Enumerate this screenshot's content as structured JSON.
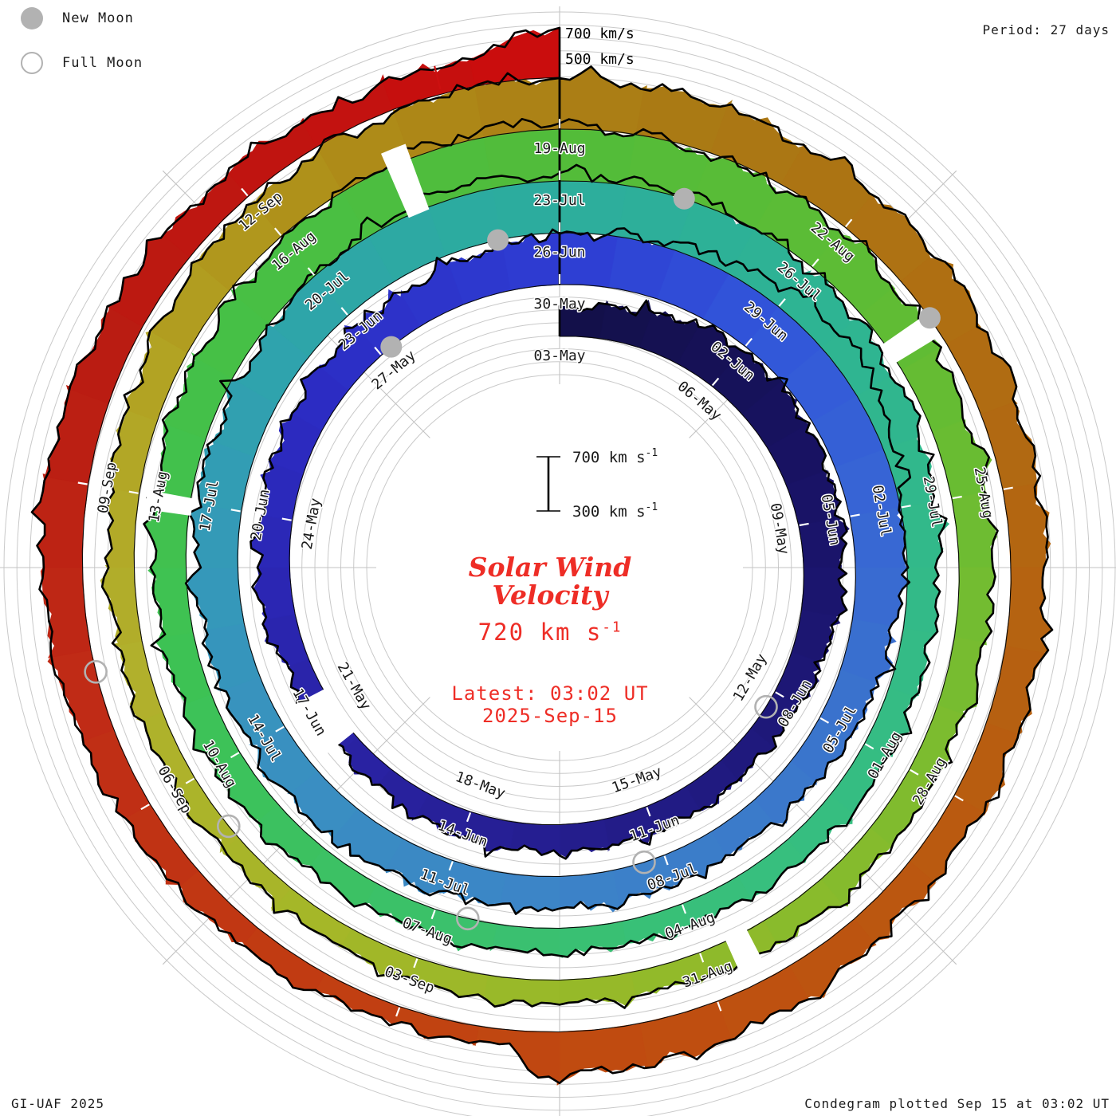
{
  "header": {
    "period_label": "Period: 27 days"
  },
  "legend": {
    "new_moon_label": "New Moon",
    "full_moon_label": "Full Moon"
  },
  "footer": {
    "left": "GI-UAF 2025",
    "right": "Condegram plotted Sep 15 at 03:02 UT"
  },
  "center": {
    "title_line1": "Solar Wind",
    "title_line2": "Velocity",
    "current_value": "720 km s",
    "current_sup": "-1",
    "latest_line1": "Latest: 03:02 UT",
    "latest_line2": "2025-Sep-15"
  },
  "chart_data": {
    "type": "area",
    "subtype": "polar-spiral-condegram",
    "title": "Solar Wind Velocity",
    "start_date": "2025-05-03",
    "end_date": "2025-09-15 03:02 UT",
    "rotation_period_days": 27,
    "rotations": 5,
    "velocity_axis": {
      "base_kms": 300,
      "gridline_step_kms": 100,
      "scale_bar_labels": [
        "700 km s",
        "300 km s"
      ],
      "scale_bar_sup": "-1"
    },
    "end_edge_labels": {
      "outer": "700 km/s",
      "inner": "500 km/s"
    },
    "date_labels": [
      {
        "t": 0,
        "label": "03-May"
      },
      {
        "t": 3,
        "label": "06-May"
      },
      {
        "t": 6,
        "label": "09-May"
      },
      {
        "t": 9,
        "label": "12-May"
      },
      {
        "t": 12,
        "label": "15-May"
      },
      {
        "t": 15,
        "label": "18-May"
      },
      {
        "t": 18,
        "label": "21-May"
      },
      {
        "t": 21,
        "label": "24-May"
      },
      {
        "t": 24,
        "label": "27-May"
      },
      {
        "t": 27,
        "label": "30-May"
      },
      {
        "t": 30,
        "label": "02-Jun"
      },
      {
        "t": 33,
        "label": "05-Jun"
      },
      {
        "t": 36,
        "label": "08-Jun"
      },
      {
        "t": 39,
        "label": "11-Jun"
      },
      {
        "t": 42,
        "label": "14-Jun"
      },
      {
        "t": 45,
        "label": "17-Jun"
      },
      {
        "t": 48,
        "label": "20-Jun"
      },
      {
        "t": 51,
        "label": "23-Jun"
      },
      {
        "t": 54,
        "label": "26-Jun"
      },
      {
        "t": 57,
        "label": "29-Jun"
      },
      {
        "t": 60,
        "label": "02-Jul"
      },
      {
        "t": 63,
        "label": "05-Jul"
      },
      {
        "t": 66,
        "label": "08-Jul"
      },
      {
        "t": 69,
        "label": "11-Jul"
      },
      {
        "t": 72,
        "label": "14-Jul"
      },
      {
        "t": 75,
        "label": "17-Jul"
      },
      {
        "t": 78,
        "label": "20-Jul"
      },
      {
        "t": 81,
        "label": "23-Jul"
      },
      {
        "t": 84,
        "label": "26-Jul"
      },
      {
        "t": 87,
        "label": "29-Jul"
      },
      {
        "t": 90,
        "label": "01-Aug"
      },
      {
        "t": 93,
        "label": "04-Aug"
      },
      {
        "t": 96,
        "label": "07-Aug"
      },
      {
        "t": 99,
        "label": "10-Aug"
      },
      {
        "t": 102,
        "label": "13-Aug"
      },
      {
        "t": 105,
        "label": "16-Aug"
      },
      {
        "t": 108,
        "label": "19-Aug"
      },
      {
        "t": 111,
        "label": "22-Aug"
      },
      {
        "t": 114,
        "label": "25-Aug"
      },
      {
        "t": 117,
        "label": "28-Aug"
      },
      {
        "t": 120,
        "label": "31-Aug"
      },
      {
        "t": 123,
        "label": "03-Sep"
      },
      {
        "t": 126,
        "label": "06-Sep"
      },
      {
        "t": 129,
        "label": "09-Sep"
      },
      {
        "t": 132,
        "label": "12-Sep"
      }
    ],
    "velocity_keyframes_kms": [
      [
        0,
        500
      ],
      [
        1,
        570
      ],
      [
        2.5,
        645
      ],
      [
        4,
        660
      ],
      [
        5.5,
        640
      ],
      [
        7,
        590
      ],
      [
        8.5,
        530
      ],
      [
        10,
        490
      ],
      [
        11.5,
        495
      ],
      [
        13,
        515
      ],
      [
        14.5,
        505
      ],
      [
        16,
        475
      ],
      [
        17.2,
        455
      ],
      [
        18.4,
        470
      ],
      [
        20,
        545
      ],
      [
        21.5,
        555
      ],
      [
        23,
        565
      ],
      [
        24.5,
        590
      ],
      [
        26,
        645
      ],
      [
        27.5,
        690
      ],
      [
        29,
        780
      ],
      [
        30,
        870
      ],
      [
        31,
        885
      ],
      [
        32,
        800
      ],
      [
        33.5,
        690
      ],
      [
        35,
        600
      ],
      [
        36.5,
        555
      ],
      [
        38,
        525
      ],
      [
        39.5,
        530
      ],
      [
        41,
        550
      ],
      [
        42.5,
        570
      ],
      [
        44,
        590
      ],
      [
        45.5,
        605
      ],
      [
        47,
        620
      ],
      [
        48.5,
        640
      ],
      [
        50,
        660
      ],
      [
        51.5,
        715
      ],
      [
        52.8,
        780
      ],
      [
        54,
        755
      ],
      [
        55.5,
        725
      ],
      [
        57,
        680
      ],
      [
        58.5,
        625
      ],
      [
        60,
        560
      ],
      [
        61.5,
        525
      ],
      [
        63,
        505
      ],
      [
        64.5,
        490
      ],
      [
        66,
        480
      ],
      [
        67.5,
        475
      ],
      [
        69,
        485
      ],
      [
        70.5,
        505
      ],
      [
        72,
        525
      ],
      [
        73.5,
        545
      ],
      [
        75,
        565
      ],
      [
        76.5,
        610
      ],
      [
        78,
        670
      ],
      [
        79.5,
        730
      ],
      [
        80.7,
        755
      ],
      [
        82,
        700
      ],
      [
        83.5,
        655
      ],
      [
        85,
        625
      ],
      [
        86.5,
        585
      ],
      [
        88,
        540
      ],
      [
        89.5,
        515
      ],
      [
        91,
        505
      ],
      [
        92.5,
        495
      ],
      [
        94,
        485
      ],
      [
        95.5,
        470
      ],
      [
        97,
        455
      ],
      [
        98.5,
        450
      ],
      [
        100,
        465
      ],
      [
        101.5,
        505
      ],
      [
        103,
        555
      ],
      [
        104.5,
        615
      ],
      [
        106,
        665
      ],
      [
        107.5,
        690
      ],
      [
        109,
        675
      ],
      [
        110.5,
        655
      ],
      [
        112,
        620
      ],
      [
        113.5,
        585
      ],
      [
        115,
        565
      ],
      [
        116.5,
        545
      ],
      [
        118,
        535
      ],
      [
        119.5,
        575
      ],
      [
        121,
        620
      ],
      [
        121.7,
        635
      ],
      [
        121.95,
        425
      ],
      [
        123,
        425
      ],
      [
        124.5,
        475
      ],
      [
        126,
        535
      ],
      [
        127.5,
        575
      ],
      [
        129,
        625
      ],
      [
        130.5,
        585
      ],
      [
        132,
        525
      ],
      [
        133.5,
        495
      ],
      [
        134.3,
        530
      ],
      [
        134.8,
        635
      ],
      [
        135,
        715
      ]
    ],
    "data_gaps_days": [
      [
        17.35,
        18.2
      ],
      [
        74.85,
        75.05
      ],
      [
        79.25,
        79.5
      ],
      [
        85.15,
        85.4
      ],
      [
        92.45,
        92.7
      ]
    ],
    "moons": [
      {
        "date": "12-May",
        "t": 9.3,
        "type": "full"
      },
      {
        "date": "27-May",
        "t": 24.2,
        "type": "new"
      },
      {
        "date": "11-Jun",
        "t": 39.3,
        "type": "full"
      },
      {
        "date": "25-Jun",
        "t": 53.2,
        "type": "new"
      },
      {
        "date": "10-Jul",
        "t": 68.6,
        "type": "full"
      },
      {
        "date": "24-Jul",
        "t": 82.4,
        "type": "new"
      },
      {
        "date": "09-Aug",
        "t": 98.4,
        "type": "full"
      },
      {
        "date": "23-Aug",
        "t": 112.2,
        "type": "new"
      },
      {
        "date": "07-Sep",
        "t": 127.3,
        "type": "full"
      }
    ],
    "event_ticks": [
      {
        "t": 133.95,
        "color": "#cc1010"
      }
    ],
    "colors": {
      "grid": "#c9c9c9",
      "radial": "#c3c3c3",
      "edge": "#000000",
      "base_line": "#0a0a0a",
      "moon": "#b2b2b2",
      "label": "#191919",
      "accent_red": "#ee2d26",
      "timeline_stops": [
        [
          0,
          "#131048"
        ],
        [
          6,
          "#191368"
        ],
        [
          12,
          "#221b86"
        ],
        [
          18,
          "#2a23a8"
        ],
        [
          23,
          "#2c2cc4"
        ],
        [
          27,
          "#2e3cd2"
        ],
        [
          30,
          "#3156da"
        ],
        [
          33,
          "#3866d4"
        ],
        [
          36,
          "#3a74cc"
        ],
        [
          40,
          "#3c82c8"
        ],
        [
          44,
          "#3a8ec2"
        ],
        [
          47,
          "#3598ba"
        ],
        [
          50,
          "#2fa3ac"
        ],
        [
          53,
          "#2caba0"
        ],
        [
          57,
          "#2eb394"
        ],
        [
          61,
          "#33ba88"
        ],
        [
          65,
          "#37bf7e"
        ],
        [
          69,
          "#3bc16a"
        ],
        [
          73,
          "#3dc255"
        ],
        [
          77,
          "#46c046"
        ],
        [
          81,
          "#52bc3a"
        ],
        [
          85,
          "#5fbc34"
        ],
        [
          89,
          "#78bc30"
        ],
        [
          93,
          "#90ba2a"
        ],
        [
          97,
          "#a4b728"
        ],
        [
          100,
          "#b1b12c"
        ],
        [
          103,
          "#b2a424"
        ],
        [
          106,
          "#ae8c18"
        ],
        [
          109,
          "#aa7a14"
        ],
        [
          113,
          "#b06c12"
        ],
        [
          117,
          "#b95c10"
        ],
        [
          121,
          "#c04c10"
        ],
        [
          124,
          "#c13c12"
        ],
        [
          127,
          "#c02c16"
        ],
        [
          130,
          "#ba1c12"
        ],
        [
          133,
          "#c21210"
        ],
        [
          135,
          "#cc0c0c"
        ]
      ]
    },
    "layout_hints": {
      "grid": true,
      "direction": "clockwise-from-north",
      "rings_labeled_every_days": 3
    }
  }
}
